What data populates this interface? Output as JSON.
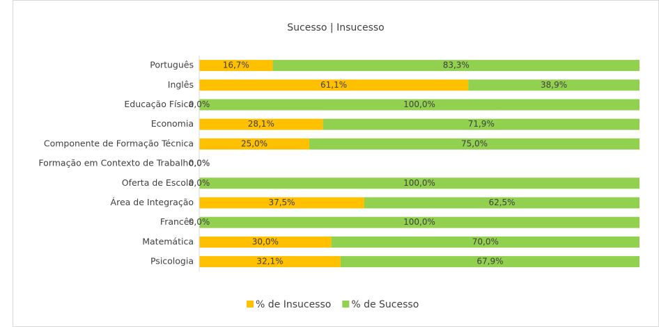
{
  "chart_data": {
    "type": "stacked-bar-horizontal",
    "title": "Sucesso | Insucesso",
    "categories": [
      "Português",
      "Inglês",
      "Educação Física",
      "Economia",
      "Componente de Formação Técnica",
      "Formação em Contexto de Trabalho",
      "Oferta de Escola",
      "Área de Integração",
      "Francês",
      "Matemática",
      "Psicologia"
    ],
    "series": [
      {
        "name": "% de Insucesso",
        "color": "#FFC000",
        "values": [
          16.7,
          61.1,
          0,
          28.1,
          25,
          0,
          0,
          37.5,
          0,
          30,
          32.1
        ],
        "value_labels": [
          "16,7%",
          "61,1%",
          "0,0%",
          "28,1%",
          "25,0%",
          "0,0%",
          "0,0%",
          "37,5%",
          "0,0%",
          "30,0%",
          "32,1%"
        ]
      },
      {
        "name": "% de Sucesso",
        "color": "#92D050",
        "values": [
          83.3,
          38.9,
          100,
          71.9,
          75,
          0,
          100,
          62.5,
          100,
          70,
          67.9
        ],
        "value_labels": [
          "83,3%",
          "38,9%",
          "100,0%",
          "71,9%",
          "75,0%",
          "0,0%",
          "100,0%",
          "62,5%",
          "100,0%",
          "70,0%",
          "67,9%"
        ]
      }
    ],
    "xlim": [
      0,
      100
    ],
    "legend": "bottom"
  }
}
